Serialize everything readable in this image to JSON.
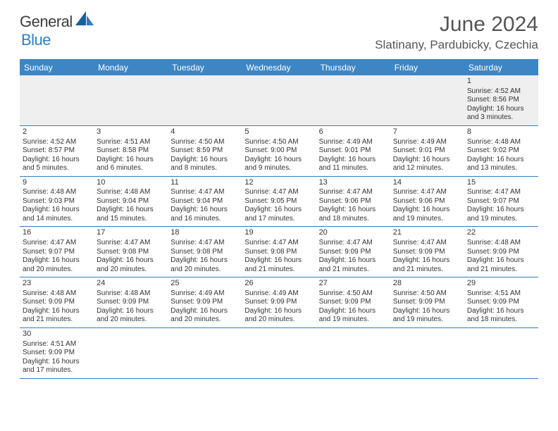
{
  "logo": {
    "word1": "General",
    "word2": "Blue"
  },
  "title": "June 2024",
  "location": "Slatinany, Pardubicky, Czechia",
  "weekdays": [
    "Sunday",
    "Monday",
    "Tuesday",
    "Wednesday",
    "Thursday",
    "Friday",
    "Saturday"
  ],
  "colors": {
    "header_bar": "#3d86c6",
    "rule": "#2f7ec2",
    "leading_bg": "#efefef",
    "text": "#333333",
    "title_text": "#555555",
    "logo_gray": "#3c3c3c",
    "logo_blue": "#2f7ec2"
  },
  "typography": {
    "title_fontsize": 30,
    "location_fontsize": 17,
    "weekday_fontsize": 12,
    "daynum_fontsize": 11,
    "body_fontsize": 10
  },
  "weeks": [
    {
      "leading": true,
      "days": [
        null,
        null,
        null,
        null,
        null,
        null,
        {
          "n": "1",
          "sunrise": "Sunrise: 4:52 AM",
          "sunset": "Sunset: 8:56 PM",
          "dl1": "Daylight: 16 hours",
          "dl2": "and 3 minutes."
        }
      ]
    },
    {
      "leading": false,
      "days": [
        {
          "n": "2",
          "sunrise": "Sunrise: 4:52 AM",
          "sunset": "Sunset: 8:57 PM",
          "dl1": "Daylight: 16 hours",
          "dl2": "and 5 minutes."
        },
        {
          "n": "3",
          "sunrise": "Sunrise: 4:51 AM",
          "sunset": "Sunset: 8:58 PM",
          "dl1": "Daylight: 16 hours",
          "dl2": "and 6 minutes."
        },
        {
          "n": "4",
          "sunrise": "Sunrise: 4:50 AM",
          "sunset": "Sunset: 8:59 PM",
          "dl1": "Daylight: 16 hours",
          "dl2": "and 8 minutes."
        },
        {
          "n": "5",
          "sunrise": "Sunrise: 4:50 AM",
          "sunset": "Sunset: 9:00 PM",
          "dl1": "Daylight: 16 hours",
          "dl2": "and 9 minutes."
        },
        {
          "n": "6",
          "sunrise": "Sunrise: 4:49 AM",
          "sunset": "Sunset: 9:01 PM",
          "dl1": "Daylight: 16 hours",
          "dl2": "and 11 minutes."
        },
        {
          "n": "7",
          "sunrise": "Sunrise: 4:49 AM",
          "sunset": "Sunset: 9:01 PM",
          "dl1": "Daylight: 16 hours",
          "dl2": "and 12 minutes."
        },
        {
          "n": "8",
          "sunrise": "Sunrise: 4:48 AM",
          "sunset": "Sunset: 9:02 PM",
          "dl1": "Daylight: 16 hours",
          "dl2": "and 13 minutes."
        }
      ]
    },
    {
      "leading": false,
      "days": [
        {
          "n": "9",
          "sunrise": "Sunrise: 4:48 AM",
          "sunset": "Sunset: 9:03 PM",
          "dl1": "Daylight: 16 hours",
          "dl2": "and 14 minutes."
        },
        {
          "n": "10",
          "sunrise": "Sunrise: 4:48 AM",
          "sunset": "Sunset: 9:04 PM",
          "dl1": "Daylight: 16 hours",
          "dl2": "and 15 minutes."
        },
        {
          "n": "11",
          "sunrise": "Sunrise: 4:47 AM",
          "sunset": "Sunset: 9:04 PM",
          "dl1": "Daylight: 16 hours",
          "dl2": "and 16 minutes."
        },
        {
          "n": "12",
          "sunrise": "Sunrise: 4:47 AM",
          "sunset": "Sunset: 9:05 PM",
          "dl1": "Daylight: 16 hours",
          "dl2": "and 17 minutes."
        },
        {
          "n": "13",
          "sunrise": "Sunrise: 4:47 AM",
          "sunset": "Sunset: 9:06 PM",
          "dl1": "Daylight: 16 hours",
          "dl2": "and 18 minutes."
        },
        {
          "n": "14",
          "sunrise": "Sunrise: 4:47 AM",
          "sunset": "Sunset: 9:06 PM",
          "dl1": "Daylight: 16 hours",
          "dl2": "and 19 minutes."
        },
        {
          "n": "15",
          "sunrise": "Sunrise: 4:47 AM",
          "sunset": "Sunset: 9:07 PM",
          "dl1": "Daylight: 16 hours",
          "dl2": "and 19 minutes."
        }
      ]
    },
    {
      "leading": false,
      "days": [
        {
          "n": "16",
          "sunrise": "Sunrise: 4:47 AM",
          "sunset": "Sunset: 9:07 PM",
          "dl1": "Daylight: 16 hours",
          "dl2": "and 20 minutes."
        },
        {
          "n": "17",
          "sunrise": "Sunrise: 4:47 AM",
          "sunset": "Sunset: 9:08 PM",
          "dl1": "Daylight: 16 hours",
          "dl2": "and 20 minutes."
        },
        {
          "n": "18",
          "sunrise": "Sunrise: 4:47 AM",
          "sunset": "Sunset: 9:08 PM",
          "dl1": "Daylight: 16 hours",
          "dl2": "and 20 minutes."
        },
        {
          "n": "19",
          "sunrise": "Sunrise: 4:47 AM",
          "sunset": "Sunset: 9:08 PM",
          "dl1": "Daylight: 16 hours",
          "dl2": "and 21 minutes."
        },
        {
          "n": "20",
          "sunrise": "Sunrise: 4:47 AM",
          "sunset": "Sunset: 9:09 PM",
          "dl1": "Daylight: 16 hours",
          "dl2": "and 21 minutes."
        },
        {
          "n": "21",
          "sunrise": "Sunrise: 4:47 AM",
          "sunset": "Sunset: 9:09 PM",
          "dl1": "Daylight: 16 hours",
          "dl2": "and 21 minutes."
        },
        {
          "n": "22",
          "sunrise": "Sunrise: 4:48 AM",
          "sunset": "Sunset: 9:09 PM",
          "dl1": "Daylight: 16 hours",
          "dl2": "and 21 minutes."
        }
      ]
    },
    {
      "leading": false,
      "days": [
        {
          "n": "23",
          "sunrise": "Sunrise: 4:48 AM",
          "sunset": "Sunset: 9:09 PM",
          "dl1": "Daylight: 16 hours",
          "dl2": "and 21 minutes."
        },
        {
          "n": "24",
          "sunrise": "Sunrise: 4:48 AM",
          "sunset": "Sunset: 9:09 PM",
          "dl1": "Daylight: 16 hours",
          "dl2": "and 20 minutes."
        },
        {
          "n": "25",
          "sunrise": "Sunrise: 4:49 AM",
          "sunset": "Sunset: 9:09 PM",
          "dl1": "Daylight: 16 hours",
          "dl2": "and 20 minutes."
        },
        {
          "n": "26",
          "sunrise": "Sunrise: 4:49 AM",
          "sunset": "Sunset: 9:09 PM",
          "dl1": "Daylight: 16 hours",
          "dl2": "and 20 minutes."
        },
        {
          "n": "27",
          "sunrise": "Sunrise: 4:50 AM",
          "sunset": "Sunset: 9:09 PM",
          "dl1": "Daylight: 16 hours",
          "dl2": "and 19 minutes."
        },
        {
          "n": "28",
          "sunrise": "Sunrise: 4:50 AM",
          "sunset": "Sunset: 9:09 PM",
          "dl1": "Daylight: 16 hours",
          "dl2": "and 19 minutes."
        },
        {
          "n": "29",
          "sunrise": "Sunrise: 4:51 AM",
          "sunset": "Sunset: 9:09 PM",
          "dl1": "Daylight: 16 hours",
          "dl2": "and 18 minutes."
        }
      ]
    },
    {
      "leading": false,
      "days": [
        {
          "n": "30",
          "sunrise": "Sunrise: 4:51 AM",
          "sunset": "Sunset: 9:09 PM",
          "dl1": "Daylight: 16 hours",
          "dl2": "and 17 minutes."
        },
        null,
        null,
        null,
        null,
        null,
        null
      ]
    }
  ]
}
